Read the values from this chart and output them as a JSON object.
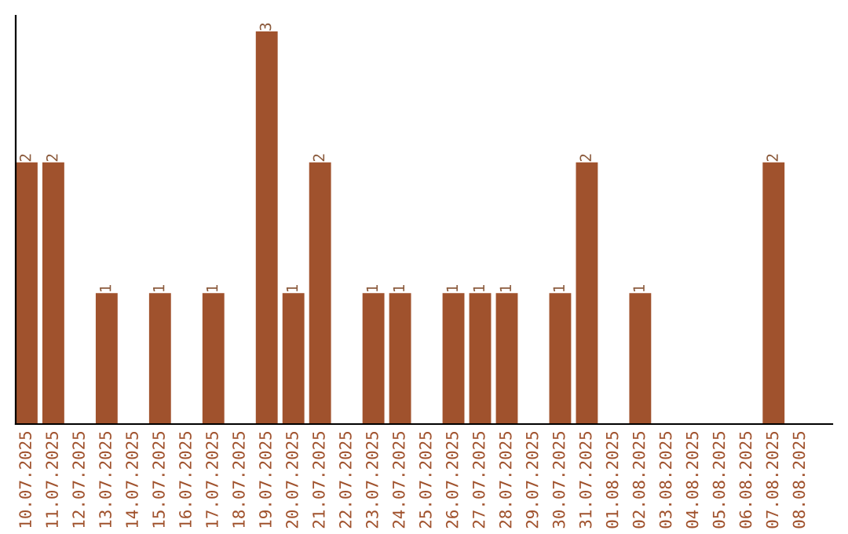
{
  "chart_data": {
    "type": "bar",
    "categories": [
      "10.07.2025",
      "11.07.2025",
      "12.07.2025",
      "13.07.2025",
      "14.07.2025",
      "15.07.2025",
      "16.07.2025",
      "17.07.2025",
      "18.07.2025",
      "19.07.2025",
      "20.07.2025",
      "21.07.2025",
      "22.07.2025",
      "23.07.2025",
      "24.07.2025",
      "25.07.2025",
      "26.07.2025",
      "27.07.2025",
      "28.07.2025",
      "29.07.2025",
      "30.07.2025",
      "31.07.2025",
      "01.08.2025",
      "02.08.2025",
      "03.08.2025",
      "04.08.2025",
      "05.08.2025",
      "06.08.2025",
      "07.08.2025",
      "08.08.2025"
    ],
    "values": [
      2,
      2,
      0,
      1,
      0,
      1,
      0,
      1,
      0,
      3,
      1,
      2,
      0,
      1,
      1,
      0,
      1,
      1,
      1,
      0,
      1,
      2,
      0,
      1,
      0,
      0,
      0,
      0,
      2,
      0
    ],
    "value_labels": [
      "2",
      "2",
      null,
      "1",
      null,
      "1",
      null,
      "1",
      null,
      "3",
      "1",
      "2",
      null,
      "1",
      "1",
      null,
      "1",
      "1",
      "1",
      null,
      "1",
      "2",
      null,
      "1",
      null,
      null,
      null,
      null,
      "2",
      null
    ],
    "color": "#a0522d",
    "ylim": [
      0,
      3.12
    ],
    "grid": false,
    "legend": false,
    "tick_labels": "x"
  }
}
